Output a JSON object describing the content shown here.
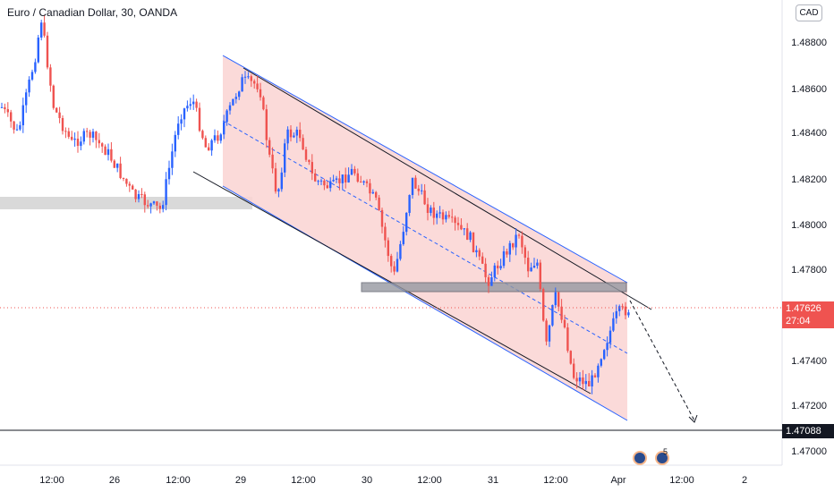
{
  "header": {
    "title": "Euro / Canadian Dollar, 30, OANDA",
    "currency_button": "CAD"
  },
  "price_axis": {
    "labels": [
      "1.48800",
      "1.48600",
      "1.48400",
      "1.48200",
      "1.48000",
      "1.47800",
      "1.47400",
      "1.47200",
      "1.47000"
    ]
  },
  "time_axis": {
    "labels": [
      "12:00",
      "26",
      "12:00",
      "29",
      "12:00",
      "30",
      "12:00",
      "31",
      "12:00",
      "Apr",
      "12:00",
      "2"
    ]
  },
  "current_price": {
    "price": "1.47626",
    "countdown": "27:04"
  },
  "support_level": {
    "price": "1.47088"
  },
  "events": {
    "count": "5"
  },
  "colors": {
    "up": "#2962ff",
    "down": "#ef5350",
    "channel_fill": "#fad4d2",
    "zone": "#d9d9d9"
  }
}
